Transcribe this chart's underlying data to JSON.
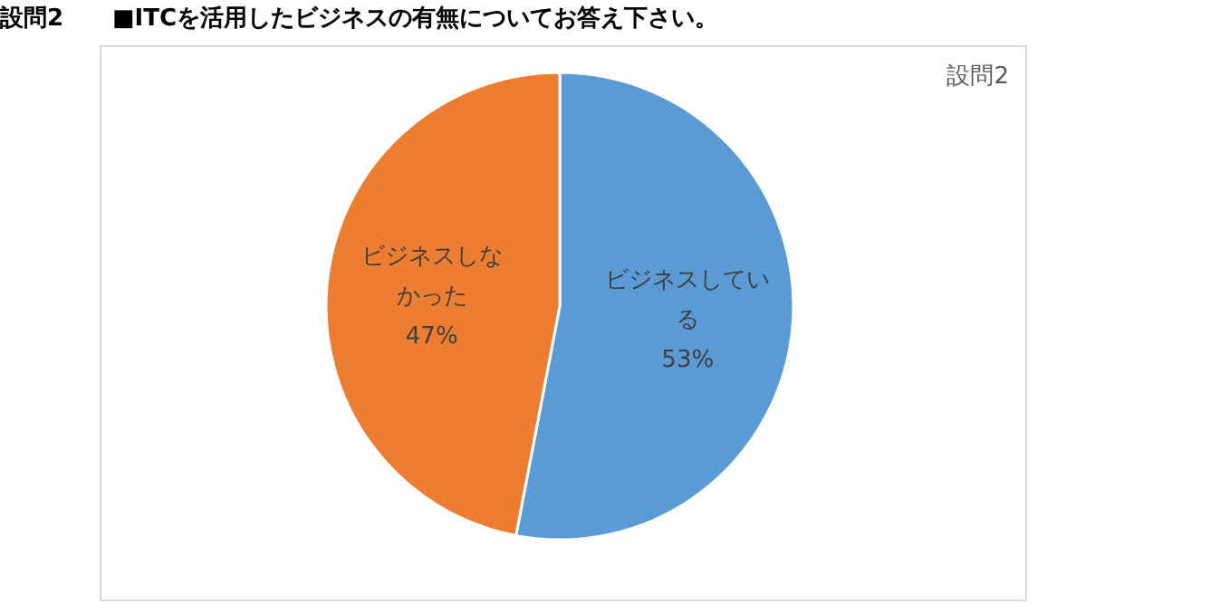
{
  "chart_data": {
    "type": "pie",
    "title": "設問2",
    "annotations": [
      "設問2",
      "■ITCを活用したビジネスの有無についてお答え下さい。"
    ],
    "categories": [
      "ビジネスしている",
      "ビジネスしなかった"
    ],
    "values": [
      53,
      47
    ],
    "colors": [
      "#5b9bd5",
      "#ed7d31"
    ],
    "value_labels": [
      "53%",
      "47%"
    ]
  }
}
